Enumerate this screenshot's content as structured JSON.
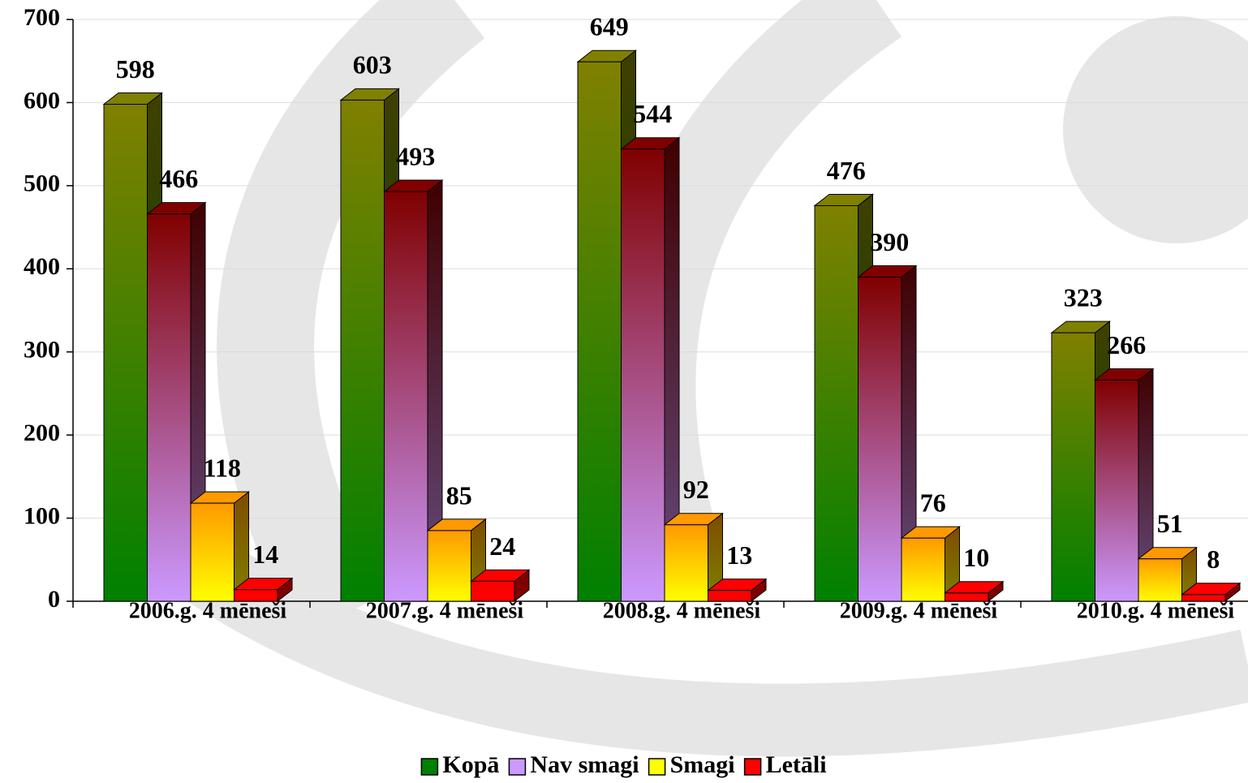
{
  "chart_data": {
    "type": "bar3d",
    "categories": [
      "2006.g. 4 mēneši",
      "2007.g. 4 mēneši",
      "2008.g. 4 mēneši",
      "2009.g. 4 mēneši",
      "2010.g. 4 mēneši"
    ],
    "series": [
      {
        "name": "Kopā",
        "color": "#008000",
        "color_top": "#808000",
        "values": [
          598,
          603,
          649,
          476,
          323
        ]
      },
      {
        "name": "Nav smagi",
        "color": "#cc99ff",
        "color_top": "#800000",
        "values": [
          466,
          493,
          544,
          390,
          266
        ]
      },
      {
        "name": "Smagi",
        "color": "#ffff00",
        "color_top": "#ff9900",
        "values": [
          118,
          85,
          92,
          76,
          51
        ]
      },
      {
        "name": "Letāli",
        "color": "#ff0000",
        "color_top": "#ff0000",
        "values": [
          14,
          24,
          13,
          10,
          8
        ]
      }
    ],
    "ylim": [
      0,
      700
    ],
    "yticks": [
      0,
      100,
      200,
      300,
      400,
      500,
      600,
      700
    ],
    "grid": true,
    "legend": "bottom"
  }
}
